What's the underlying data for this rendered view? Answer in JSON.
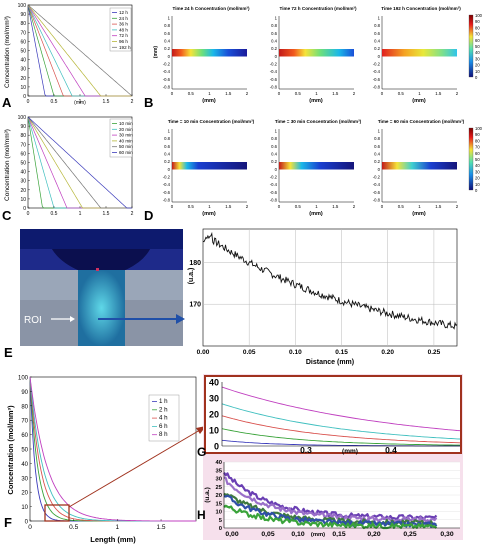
{
  "panels": {
    "A": {
      "letter": "A",
      "ylabel": "Concentration (mol/mm³)",
      "xlabel": "(mm)",
      "xticks": [
        "0",
        "0.5",
        "1",
        "1.5",
        "2"
      ],
      "yticks": [
        "0",
        "10",
        "20",
        "30",
        "40",
        "50",
        "60",
        "70",
        "80",
        "90",
        "100"
      ],
      "legend": [
        "12 h",
        "24 h",
        "36 h",
        "48 h",
        "72 h",
        "96 h",
        "192 h"
      ],
      "colors": [
        "#3b3bbb",
        "#3aa33a",
        "#d9534f",
        "#3fbfbf",
        "#c040c0",
        "#b7b73a",
        "#777777"
      ]
    },
    "B": {
      "letter": "B",
      "titles": [
        "Time 24 h Concentration (mol/mm³)",
        "Time 72 h Concentration (mol/mm³)",
        "Time 192 h Concentration (mol/mm³)"
      ],
      "ylabel": "(mm)",
      "xlabel": "(mm)",
      "xticks": [
        "0",
        "0.5",
        "1",
        "1.5",
        "2"
      ],
      "yticks": [
        "1",
        "0.8",
        "0.6",
        "0.4",
        "0.2",
        "0",
        "-0.2",
        "-0.4",
        "-0.6",
        "-0.8"
      ],
      "colorbar": [
        "100",
        "90",
        "80",
        "70",
        "60",
        "50",
        "40",
        "30",
        "20",
        "10",
        "0"
      ]
    },
    "C": {
      "letter": "C",
      "ylabel": "Concentration (mol/mm³)",
      "xticks": [
        "0",
        "0.5",
        "1",
        "1.5",
        "2"
      ],
      "yticks": [
        "0",
        "10",
        "20",
        "30",
        "40",
        "50",
        "60",
        "70",
        "80",
        "90",
        "100"
      ],
      "legend": [
        "10 min",
        "20 min",
        "30 min",
        "40 min",
        "50 min",
        "60 min"
      ],
      "colors": [
        "#3aa33a",
        "#3fbfbf",
        "#c040c0",
        "#b7b73a",
        "#777777",
        "#3b3bbb"
      ]
    },
    "D": {
      "letter": "D",
      "titles": [
        "Time = 10 min Concentration (mol/mm³)",
        "Time = 30 min Concentration (mol/mm³)",
        "Time = 60 min Concentration (mol/mm³)"
      ],
      "xlabel": "(mm)",
      "xticks": [
        "0",
        "0.5",
        "1",
        "1.5",
        "2"
      ],
      "yticks": [
        "1",
        "0.8",
        "0.6",
        "0.4",
        "0.2",
        "0",
        "-0.2",
        "-0.4",
        "-0.6",
        "-0.8"
      ],
      "colorbar": [
        "100",
        "90",
        "80",
        "70",
        "60",
        "50",
        "40",
        "30",
        "20",
        "10",
        "0"
      ]
    },
    "E": {
      "letter": "E",
      "roi_label": "ROI",
      "ylabel": "(u.a.)",
      "xlabel": "Distance (mm)",
      "xticks": [
        "0.00",
        "0.05",
        "0.10",
        "0.15",
        "0.20",
        "0.25"
      ],
      "yticks": [
        "180",
        "170"
      ]
    },
    "F": {
      "letter": "F",
      "ylabel": "Concentration (mol/mm³)",
      "xlabel": "Length (mm)",
      "xticks": [
        "0",
        "0.5",
        "1",
        "1.5"
      ],
      "yticks": [
        "0",
        "10",
        "20",
        "30",
        "40",
        "50",
        "60",
        "70",
        "80",
        "90",
        "100"
      ],
      "legend": [
        "1 h",
        "2 h",
        "4 h",
        "6 h",
        "8 h"
      ],
      "colors": [
        "#3b3bbb",
        "#3aa33a",
        "#d9534f",
        "#3fbfbf",
        "#c040c0"
      ]
    },
    "G": {
      "letter": "G",
      "xticks": [
        "0.3",
        "(mm)",
        "0.4"
      ],
      "yticks": [
        "0",
        "10",
        "20",
        "30",
        "40"
      ]
    },
    "H": {
      "letter": "H",
      "ylabel": "(u.a.)",
      "xticks": [
        "0,00",
        "0,05",
        "0,10",
        "(mm)",
        "0,15",
        "0,20",
        "0,25",
        "0,30"
      ],
      "yticks": [
        "0",
        "5",
        "10",
        "15",
        "20",
        "25",
        "30",
        "35",
        "40"
      ]
    }
  }
}
